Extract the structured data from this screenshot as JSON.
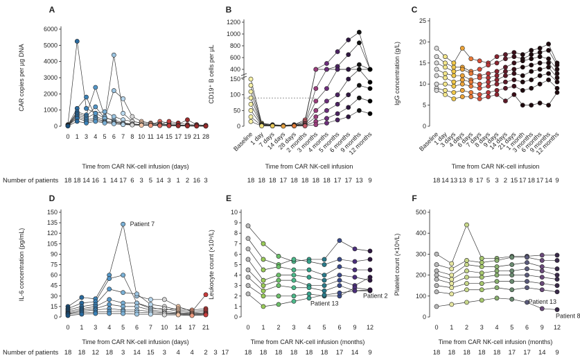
{
  "footer_label": "Number of patients",
  "panels": [
    {
      "id": "A",
      "type": "scatter",
      "ylabel": "CAR copies per µg DNA",
      "xlabel": "Time from CAR NK-cell infusion (days)",
      "x_ticks": [
        "0",
        "1",
        "3",
        "4",
        "5",
        "6",
        "7",
        "8",
        "10",
        "11",
        "14",
        "15",
        "17",
        "19",
        "21",
        "28"
      ],
      "y_ticks": [
        0,
        1000,
        2000,
        3000,
        4000,
        5000,
        6000
      ],
      "ylim": [
        0,
        6000
      ],
      "patients": [
        "18",
        "18",
        "14",
        "16",
        "1",
        "14",
        "17",
        "6",
        "3",
        "5",
        "14",
        "3",
        "1",
        "2",
        "16",
        "3"
      ],
      "colors": [
        "#1b4f7a",
        "#2a6a9e",
        "#3b82b8",
        "#5597c8",
        "#7ab0d6",
        "#9cc5e2",
        "#b9d8ee",
        "#d8d8d8",
        "#f3c7a8",
        "#ef9a7e",
        "#e4685b",
        "#c83c3c",
        "#9a2a2a"
      ],
      "series": [
        [
          100,
          5250,
          1100,
          800,
          500,
          400,
          200,
          100,
          100,
          80,
          60,
          50,
          40,
          30,
          20,
          10
        ],
        [
          80,
          1100,
          1800,
          600,
          400,
          4400,
          800,
          300,
          200,
          150,
          100,
          80,
          60,
          40,
          30,
          20
        ],
        [
          60,
          900,
          700,
          2400,
          600,
          300,
          150,
          100,
          100,
          80,
          300,
          200,
          120,
          400,
          100,
          50
        ],
        [
          50,
          800,
          600,
          1200,
          500,
          2200,
          1700,
          600,
          300,
          200,
          150,
          100,
          80,
          60,
          40,
          30
        ],
        [
          40,
          700,
          500,
          800,
          900,
          600,
          400,
          300,
          200,
          150,
          100,
          300,
          200,
          100,
          80,
          50
        ],
        [
          30,
          600,
          400,
          500,
          300,
          250,
          200,
          150,
          100,
          80,
          60,
          50,
          40,
          30,
          20,
          10
        ],
        [
          20,
          500,
          300,
          400,
          250,
          200,
          150,
          100,
          80,
          60,
          50,
          40,
          30,
          20,
          10,
          5
        ],
        [
          10,
          300,
          200,
          300,
          200,
          150,
          100,
          80,
          60,
          50,
          40,
          30,
          20,
          10,
          5,
          5
        ]
      ]
    },
    {
      "id": "B",
      "type": "scatter",
      "ylabel": "CD19⁺ B cells per µL",
      "xlabel": "Time from CAR NK-cell infusion",
      "x_ticks": [
        "Baseline",
        "1 day",
        "7 days",
        "14 days",
        "28 days",
        "2 months",
        "3 months",
        "4 months",
        "5 months",
        "6 months",
        "9 months",
        "12 months"
      ],
      "y_ticks_lower": [
        0,
        50,
        100,
        150
      ],
      "y_ticks_upper": [
        400,
        600,
        800,
        1000,
        1200
      ],
      "reference_line": 90,
      "patients": [
        "18",
        "18",
        "18",
        "17",
        "18",
        "18",
        "18",
        "18",
        "17",
        "17",
        "13",
        "9"
      ],
      "colors": [
        "#f6f0a8",
        "#efe07a",
        "#e8c85a",
        "#e6a040",
        "#e07a38",
        "#c85a66",
        "#9a3e7c",
        "#6c2e7a",
        "#4a2260",
        "#2e1640",
        "#111111",
        "#000000"
      ],
      "series": [
        [
          150,
          10,
          5,
          3,
          5,
          20,
          300,
          500,
          700,
          900,
          1030,
          400
        ],
        [
          130,
          8,
          4,
          2,
          4,
          15,
          200,
          350,
          450,
          650,
          850,
          300
        ],
        [
          110,
          6,
          3,
          2,
          3,
          10,
          120,
          180,
          250,
          350,
          480,
          170
        ],
        [
          90,
          5,
          2,
          1,
          2,
          8,
          80,
          120,
          160,
          200,
          300,
          160
        ],
        [
          70,
          4,
          2,
          1,
          2,
          5,
          50,
          80,
          100,
          150,
          200,
          140
        ],
        [
          50,
          3,
          1,
          1,
          1,
          3,
          30,
          50,
          70,
          100,
          130,
          120
        ],
        [
          30,
          2,
          1,
          1,
          1,
          2,
          15,
          25,
          40,
          60,
          90,
          80
        ],
        [
          15,
          1,
          1,
          0,
          1,
          1,
          5,
          10,
          20,
          30,
          50,
          40
        ]
      ]
    },
    {
      "id": "C",
      "type": "scatter",
      "ylabel": "IgG concentration (g/L)",
      "xlabel": "Time from CAR NK-cell infusion",
      "x_ticks": [
        "Baseline",
        "1 day",
        "3 days",
        "4 days",
        "6 days",
        "7 days",
        "8 days",
        "9 days",
        "14 days",
        "21 days",
        "1 month",
        "3 months",
        "6 months",
        "9 months",
        "12 months"
      ],
      "y_ticks": [
        0,
        5,
        10,
        15,
        20,
        25
      ],
      "ylim": [
        0,
        25
      ],
      "patients": [
        "18",
        "14",
        "13",
        "13",
        "8",
        "17",
        "5",
        "3",
        "2",
        "15",
        "17",
        "18",
        "17",
        "14",
        "9"
      ],
      "colors": [
        "#d8d8d8",
        "#f3e68a",
        "#f0c84a",
        "#eda43a",
        "#e87a38",
        "#d9503a",
        "#b43638",
        "#8a2430",
        "#5c1a28",
        "#3a0e18",
        "#1e0a0e"
      ],
      "series": [
        [
          18.5,
          16.5,
          15.0,
          18.5,
          16.0,
          15.5,
          15.0,
          16.5,
          17.0,
          17.5,
          17.0,
          18.0,
          18.5,
          19.5,
          15.0
        ],
        [
          16.5,
          15.0,
          14.0,
          14.0,
          13.0,
          13.5,
          14.5,
          15.0,
          16.0,
          16.5,
          16.0,
          17.0,
          17.5,
          18.0,
          14.5
        ],
        [
          15.0,
          14.0,
          13.0,
          13.5,
          12.5,
          12.0,
          12.5,
          13.0,
          14.0,
          15.0,
          15.5,
          16.0,
          16.5,
          16.0,
          13.5
        ],
        [
          13.5,
          12.5,
          12.0,
          12.0,
          11.0,
          11.5,
          11.5,
          12.0,
          13.0,
          13.5,
          14.0,
          14.5,
          15.0,
          15.0,
          12.5
        ],
        [
          12.0,
          11.5,
          10.5,
          11.0,
          10.5,
          10.0,
          10.5,
          11.0,
          12.0,
          12.5,
          12.0,
          13.0,
          13.5,
          14.0,
          11.5
        ],
        [
          10.0,
          10.0,
          9.5,
          10.0,
          9.5,
          9.0,
          9.5,
          10.0,
          10.5,
          11.0,
          10.5,
          11.0,
          12.0,
          12.5,
          10.5
        ],
        [
          9.0,
          8.5,
          8.0,
          8.5,
          8.0,
          7.5,
          8.0,
          8.5,
          9.0,
          9.5,
          8.5,
          9.0,
          10.0,
          11.0,
          9.0
        ],
        [
          8.5,
          7.5,
          6.5,
          7.0,
          7.0,
          6.5,
          7.0,
          7.5,
          6.0,
          7.5,
          5.0,
          5.0,
          5.5,
          5.0,
          8.0
        ]
      ]
    },
    {
      "id": "D",
      "type": "scatter",
      "ylabel": "IL-6 concentration (pg/mL)",
      "xlabel": "Time from CAR NK-cell infusion (days)",
      "x_ticks": [
        "0",
        "1",
        "3",
        "4",
        "5",
        "6",
        "7",
        "10",
        "14",
        "17",
        "21"
      ],
      "y_ticks": [
        0,
        15,
        30,
        45,
        60,
        75,
        90,
        105,
        120,
        135,
        150
      ],
      "ylim": [
        0,
        150
      ],
      "annotation": "Patient 7",
      "patients": [
        "18",
        "18",
        "12",
        "18",
        "3",
        "14",
        "15",
        "3",
        "4",
        "4",
        "2",
        "3",
        "17"
      ],
      "colors": [
        "#1b4f7a",
        "#2a6a9e",
        "#3b82b8",
        "#5597c8",
        "#7ab0d6",
        "#9cc5e2",
        "#b9d8ee",
        "#d8d8d8",
        "#f3c7a8",
        "#ef9a7e",
        "#c83c3c"
      ],
      "series": [
        [
          15,
          28,
          26,
          60,
          133,
          30,
          25,
          25,
          15,
          8,
          32
        ],
        [
          12,
          20,
          22,
          55,
          60,
          20,
          14,
          10,
          12,
          10,
          12
        ],
        [
          10,
          15,
          18,
          40,
          35,
          33,
          18,
          15,
          10,
          8,
          10
        ],
        [
          8,
          12,
          15,
          25,
          20,
          20,
          12,
          12,
          8,
          6,
          8
        ],
        [
          6,
          10,
          12,
          18,
          15,
          15,
          10,
          8,
          6,
          5,
          6
        ],
        [
          5,
          8,
          10,
          12,
          10,
          10,
          8,
          6,
          5,
          4,
          5
        ],
        [
          4,
          6,
          7,
          8,
          8,
          7,
          6,
          5,
          4,
          3,
          4
        ],
        [
          2,
          4,
          5,
          5,
          5,
          4,
          4,
          3,
          3,
          2,
          3
        ]
      ]
    },
    {
      "id": "E",
      "type": "scatter",
      "ylabel": "Leukocyte count (×10⁹/L)",
      "xlabel": "Time from CAR NK-cell infusion (months)",
      "x_ticks": [
        "0",
        "1",
        "2",
        "3",
        "4",
        "5",
        "6",
        "9",
        "12"
      ],
      "y_ticks": [
        0,
        1,
        2,
        3,
        4,
        5,
        6,
        7,
        8,
        9,
        10
      ],
      "ylim": [
        0,
        10
      ],
      "annotations": [
        "Patient 13",
        "Patient 2"
      ],
      "patients": [
        "18",
        "18",
        "18",
        "18",
        "18",
        "18",
        "17",
        "14",
        "9"
      ],
      "colors": [
        "#b8b8b8",
        "#9acb5a",
        "#6cbf6a",
        "#4cb88a",
        "#36a08a",
        "#2a7a8a",
        "#3a4a8a",
        "#4a2e7a",
        "#2e1640",
        "#e03a3a",
        "#7a4fbf"
      ],
      "series": [
        [
          8.7,
          7.0,
          5.8,
          5.3,
          5.5,
          5.5,
          7.3,
          6.5,
          6.3
        ],
        [
          7.5,
          5.5,
          5.0,
          5.5,
          5.3,
          5.0,
          5.5,
          5.3,
          5.5
        ],
        [
          6.5,
          4.5,
          4.8,
          4.5,
          4.5,
          4.0,
          4.8,
          4.5,
          4.5
        ],
        [
          5.5,
          3.5,
          4.0,
          4.0,
          3.8,
          3.5,
          4.0,
          3.8,
          3.5
        ],
        [
          4.5,
          3.0,
          3.5,
          3.5,
          3.0,
          3.0,
          3.5,
          3.0,
          3.8
        ],
        [
          3.8,
          2.5,
          3.0,
          2.8,
          2.8,
          2.5,
          3.0,
          2.5,
          2.5
        ],
        [
          3.0,
          2.0,
          2.0,
          2.0,
          2.2,
          2.0,
          2.0,
          2.8,
          2.6
        ],
        [
          2.2,
          1.0,
          1.2,
          1.5,
          1.8,
          2.1,
          2.3,
          2.5,
          2.6
        ]
      ]
    },
    {
      "id": "F",
      "type": "scatter",
      "ylabel": "Platelet count (×10⁹/L)",
      "xlabel": "Time from CAR NK-cell infusion (months)",
      "x_ticks": [
        "0",
        "1",
        "2",
        "3",
        "4",
        "5",
        "6",
        "9",
        "12"
      ],
      "y_ticks": [
        0,
        100,
        200,
        300,
        400,
        500
      ],
      "ylim": [
        0,
        500
      ],
      "annotations": [
        "Patient 13",
        "Patient 8"
      ],
      "patients": [
        "18",
        "18",
        "18",
        "18",
        "18",
        "17",
        "17",
        "14",
        "9"
      ],
      "colors": [
        "#b8b8b8",
        "#e6e6a0",
        "#c8d88a",
        "#a8c870",
        "#8ab070",
        "#6a8a70",
        "#5a5a7a",
        "#6a4a7a",
        "#3a2a4a",
        "#f08080",
        "#e05a5a"
      ],
      "series": [
        [
          300,
          255,
          440,
          280,
          280,
          290,
          290,
          295,
          295
        ],
        [
          250,
          230,
          270,
          260,
          270,
          285,
          285,
          270,
          270
        ],
        [
          220,
          200,
          250,
          240,
          240,
          250,
          260,
          240,
          230
        ],
        [
          200,
          180,
          220,
          210,
          220,
          220,
          230,
          220,
          200
        ],
        [
          180,
          160,
          190,
          190,
          200,
          200,
          200,
          190,
          180
        ],
        [
          150,
          140,
          160,
          160,
          170,
          170,
          170,
          160,
          150
        ],
        [
          120,
          110,
          130,
          130,
          140,
          130,
          140,
          130,
          120
        ],
        [
          50,
          60,
          70,
          80,
          90,
          85,
          70,
          40,
          35
        ]
      ]
    }
  ]
}
